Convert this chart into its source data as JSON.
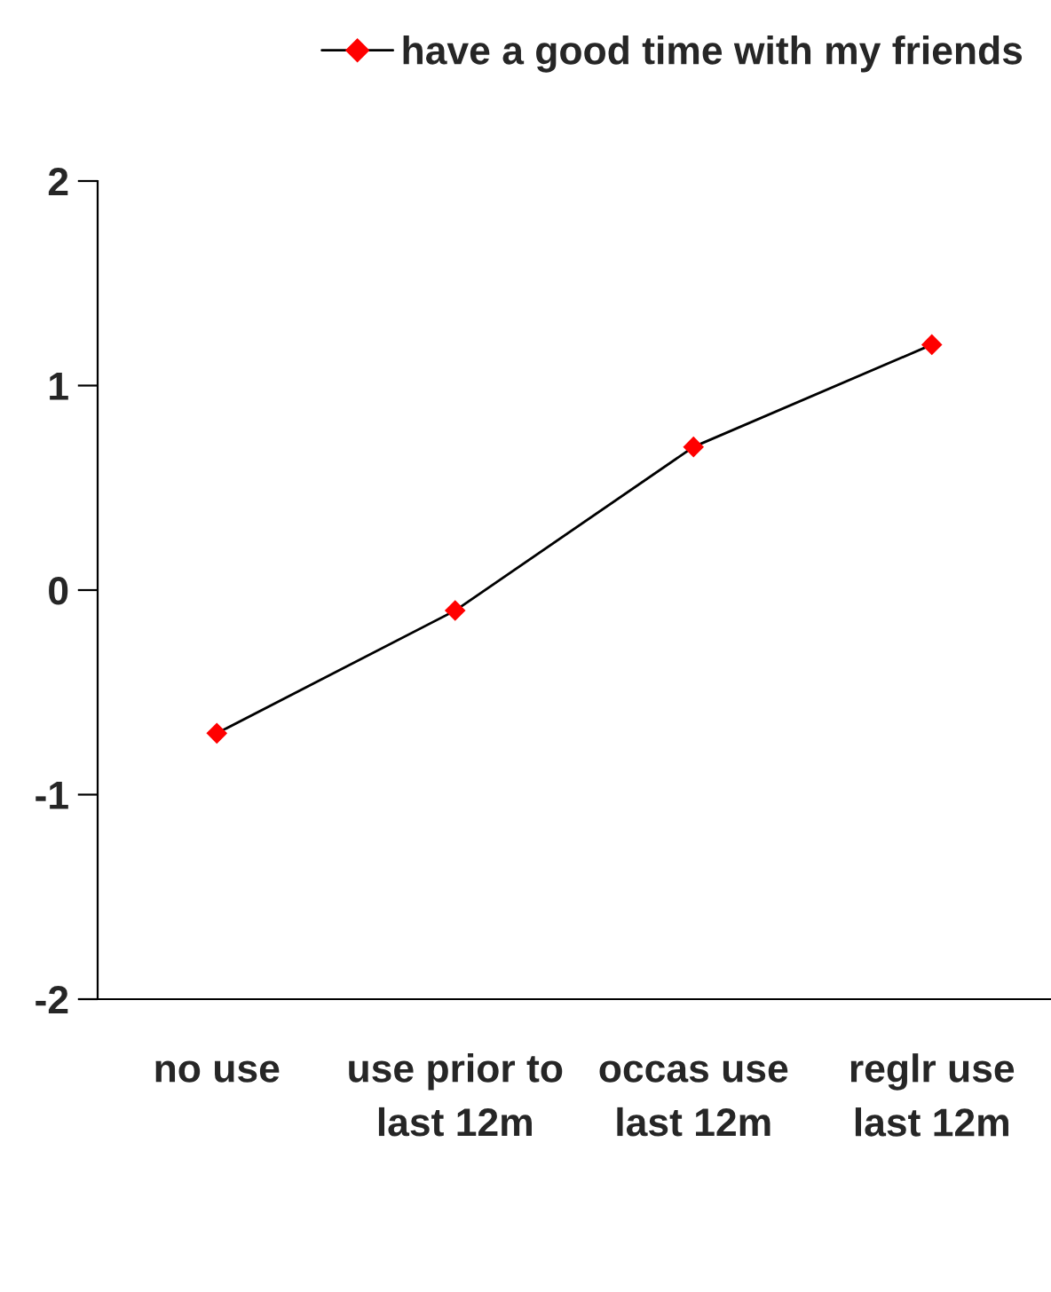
{
  "chart_data": {
    "type": "line",
    "categories": [
      "no use",
      "use prior to last 12m",
      "occas use last 12m",
      "reglr use last 12m"
    ],
    "series": [
      {
        "name": "have a good time with my friends",
        "color": "#ff0000",
        "values": [
          -0.7,
          -0.1,
          0.7,
          1.2
        ]
      }
    ],
    "ylim": [
      -2,
      2
    ],
    "yticks": [
      -2,
      -1,
      0,
      1,
      2
    ],
    "marker": "diamond",
    "line_style": "solid",
    "legend": "top",
    "grid": false
  }
}
